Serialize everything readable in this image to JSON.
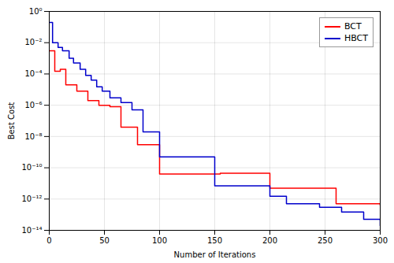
{
  "chart_data": {
    "type": "step",
    "xlabel": "Number of Iterations",
    "ylabel": "Best Cost",
    "log": "y",
    "grid": true,
    "legend": "top-right",
    "xlim": [
      0,
      300
    ],
    "xticks": [
      0,
      50,
      100,
      150,
      200,
      250,
      300
    ],
    "ylim": [
      1e-14,
      1
    ],
    "yticks": [
      {
        "value": 1e-14,
        "label": "10⁻¹⁴"
      },
      {
        "value": 1e-12,
        "label": "10⁻¹²"
      },
      {
        "value": 1e-10,
        "label": "10⁻¹⁰"
      },
      {
        "value": 1e-08,
        "label": "10⁻⁸"
      },
      {
        "value": 1e-06,
        "label": "10⁻⁶"
      },
      {
        "value": 0.0001,
        "label": "10⁻⁴"
      },
      {
        "value": 0.01,
        "label": "10⁻²"
      },
      {
        "value": 1,
        "label": "10⁰"
      }
    ],
    "series": [
      {
        "name": "BCT",
        "color": "#ff0000",
        "x": [
          0,
          2,
          5,
          8,
          10,
          13,
          15,
          20,
          25,
          30,
          35,
          40,
          45,
          50,
          55,
          60,
          65,
          70,
          80,
          90,
          100,
          150,
          155,
          175,
          200,
          205,
          260,
          265,
          300
        ],
        "values": [
          0.003,
          0.003,
          0.00015,
          0.00015,
          0.0002,
          0.0002,
          2e-05,
          2e-05,
          8e-06,
          8e-06,
          2e-06,
          2e-06,
          1e-06,
          1e-06,
          8e-07,
          8e-07,
          4e-08,
          4e-08,
          3e-09,
          3e-09,
          4e-11,
          4e-11,
          4.5e-11,
          4.5e-11,
          5e-12,
          5e-12,
          5e-13,
          5e-13,
          4e-13
        ]
      },
      {
        "name": "HBCT",
        "color": "#0000cc",
        "x": [
          0,
          1,
          3,
          5,
          8,
          10,
          12,
          15,
          18,
          20,
          22,
          25,
          28,
          30,
          33,
          35,
          38,
          40,
          43,
          45,
          48,
          50,
          55,
          60,
          65,
          70,
          75,
          80,
          85,
          90,
          100,
          105,
          150,
          195,
          200,
          205,
          215,
          230,
          245,
          255,
          265,
          275,
          285,
          295,
          300
        ],
        "values": [
          0.2,
          0.2,
          0.01,
          0.01,
          0.005,
          0.005,
          0.003,
          0.003,
          0.001,
          0.001,
          0.0005,
          0.0005,
          0.0002,
          0.0002,
          8e-05,
          8e-05,
          4e-05,
          4e-05,
          1.5e-05,
          1.5e-05,
          8e-06,
          8e-06,
          3e-06,
          3e-06,
          1.5e-06,
          1.5e-06,
          5e-07,
          5e-07,
          2e-08,
          2e-08,
          5e-10,
          5e-10,
          7e-12,
          7e-12,
          1.5e-12,
          1.5e-12,
          5e-13,
          5e-13,
          3e-13,
          3e-13,
          1.5e-13,
          1.5e-13,
          5e-14,
          5e-14,
          2e-14
        ]
      }
    ]
  }
}
